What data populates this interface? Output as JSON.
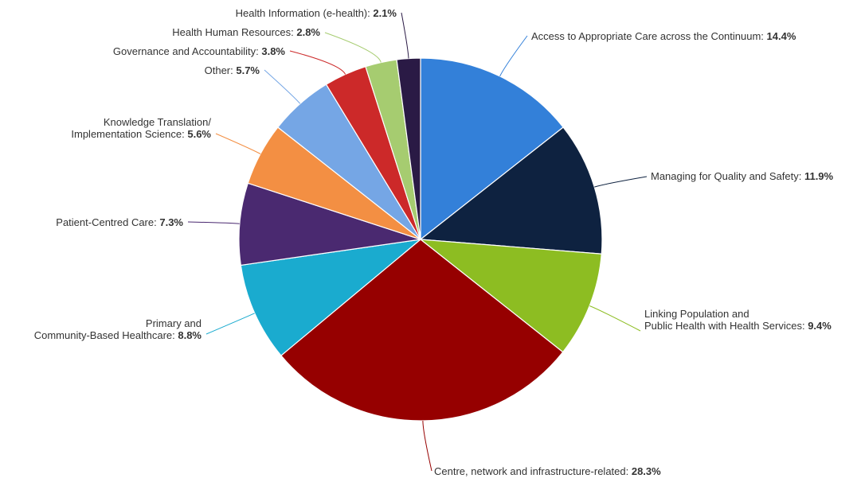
{
  "chart_data": {
    "type": "pie",
    "title": "",
    "start_angle_deg": 0,
    "direction": "clockwise",
    "legend": "none",
    "slices": [
      {
        "name": "Access to Appropriate Care across the Continuum",
        "lines": [
          "Access to Appropriate Care across the Continuum"
        ],
        "value": 14.4,
        "label": "14.4%",
        "color": "#3380d9"
      },
      {
        "name": "Managing for Quality and Safety",
        "lines": [
          "Managing for Quality and Safety"
        ],
        "value": 11.9,
        "label": "11.9%",
        "color": "#0e2240"
      },
      {
        "name": "Linking Population and Public Health with Health Services",
        "lines": [
          "Linking Population and",
          "Public Health with Health Services"
        ],
        "value": 9.4,
        "label": "9.4%",
        "color": "#8dbd22"
      },
      {
        "name": "Centre, network and infrastructure-related",
        "lines": [
          "Centre, network and infrastructure-related"
        ],
        "value": 28.3,
        "label": "28.3%",
        "color": "#960000"
      },
      {
        "name": "Primary and Community-Based Healthcare",
        "lines": [
          "Primary and",
          "Community-Based Healthcare"
        ],
        "value": 8.8,
        "label": "8.8%",
        "color": "#1aabcf"
      },
      {
        "name": "Patient-Centred Care",
        "lines": [
          "Patient-Centred Care"
        ],
        "value": 7.3,
        "label": "7.3%",
        "color": "#4a2970"
      },
      {
        "name": "Knowledge Translation/ Implementation Science",
        "lines": [
          "Knowledge Translation/",
          "Implementation Science"
        ],
        "value": 5.6,
        "label": "5.6%",
        "color": "#f38f43"
      },
      {
        "name": "Other",
        "lines": [
          "Other"
        ],
        "value": 5.7,
        "label": "5.7%",
        "color": "#75a6e5"
      },
      {
        "name": "Governance and Accountability",
        "lines": [
          "Governance and Accountability"
        ],
        "value": 3.8,
        "label": "3.8%",
        "color": "#cc2929"
      },
      {
        "name": "Health Human Resources",
        "lines": [
          "Health Human Resources"
        ],
        "value": 2.8,
        "label": "2.8%",
        "color": "#a6cc70"
      },
      {
        "name": "Health Information (e-health)",
        "lines": [
          "Health Information (e-health)"
        ],
        "value": 2.1,
        "label": "2.1%",
        "color": "#2a1a45"
      }
    ]
  }
}
